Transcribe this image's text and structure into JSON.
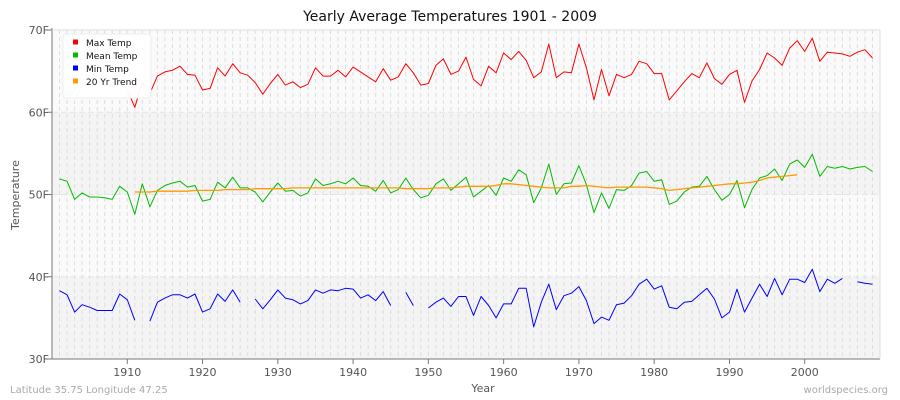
{
  "chart_data": {
    "type": "line",
    "title": "Yearly Average Temperatures 1901 - 2009",
    "xlabel": "Year",
    "ylabel": "Temperature",
    "xlim": [
      1900,
      2010
    ],
    "ylim": [
      30,
      70
    ],
    "x_ticks": [
      "1910",
      "1920",
      "1930",
      "1940",
      "1950",
      "1960",
      "1970",
      "1980",
      "1990",
      "2000"
    ],
    "y_ticks": [
      "30F",
      "40F",
      "50F",
      "60F",
      "70F"
    ],
    "grid": true,
    "legend_position": "top-left",
    "x_start": 1901,
    "series": [
      {
        "name": "Max Temp",
        "color": "#ff0000",
        "values": [
          null,
          null,
          null,
          null,
          null,
          null,
          null,
          null,
          null,
          62.7,
          60.6,
          63.6,
          62.3,
          64.4,
          64.9,
          65.1,
          65.6,
          64.6,
          64.5,
          62.7,
          62.9,
          65.4,
          64.4,
          65.9,
          64.8,
          64.5,
          63.6,
          62.2,
          63.5,
          64.6,
          63.3,
          63.7,
          63.0,
          63.4,
          65.4,
          64.4,
          64.4,
          65.1,
          64.3,
          65.5,
          64.9,
          64.3,
          63.7,
          65.3,
          63.9,
          64.3,
          65.9,
          64.8,
          63.3,
          63.5,
          65.7,
          66.5,
          64.6,
          65.0,
          66.7,
          64.0,
          63.2,
          65.6,
          64.8,
          67.2,
          66.4,
          67.4,
          66.3,
          64.2,
          64.9,
          68.3,
          64.2,
          64.9,
          64.8,
          68.3,
          65.4,
          61.5,
          65.2,
          62.0,
          64.6,
          64.2,
          64.6,
          66.2,
          65.9,
          64.7,
          64.7,
          61.5,
          62.6,
          63.7,
          64.7,
          64.2,
          66.0,
          64.1,
          63.4,
          64.6,
          65.1,
          61.2,
          63.8,
          65.2,
          67.2,
          66.6,
          65.7,
          67.8,
          68.7,
          67.4,
          69.0,
          66.2,
          67.3,
          67.2,
          67.1,
          66.8,
          67.3,
          67.6,
          66.6
        ]
      },
      {
        "name": "Mean Temp",
        "color": "#00bb00",
        "values": [
          51.9,
          51.6,
          49.4,
          50.2,
          49.7,
          49.7,
          49.6,
          49.4,
          51.0,
          50.3,
          47.6,
          51.3,
          48.5,
          50.5,
          51.1,
          51.4,
          51.6,
          50.9,
          51.1,
          49.2,
          49.4,
          51.5,
          50.8,
          52.1,
          50.8,
          50.8,
          50.3,
          49.1,
          50.3,
          51.4,
          50.4,
          50.5,
          49.8,
          50.2,
          51.9,
          51.1,
          51.3,
          51.6,
          51.3,
          52.0,
          51.1,
          51.0,
          50.4,
          51.7,
          50.2,
          50.6,
          52.0,
          50.6,
          49.6,
          49.9,
          51.3,
          51.9,
          50.5,
          51.3,
          52.1,
          49.7,
          50.4,
          51.1,
          49.9,
          52.0,
          51.6,
          53.0,
          52.4,
          49.0,
          50.8,
          53.7,
          50.0,
          51.3,
          51.4,
          53.5,
          51.2,
          47.8,
          50.2,
          48.3,
          50.6,
          50.5,
          51.1,
          52.6,
          52.8,
          51.6,
          51.8,
          48.8,
          49.2,
          50.3,
          50.9,
          51.0,
          52.2,
          50.6,
          49.3,
          50.0,
          51.7,
          48.4,
          50.6,
          52.0,
          52.3,
          53.1,
          51.7,
          53.7,
          54.2,
          53.3,
          54.9,
          52.2,
          53.4,
          53.2,
          53.4,
          53.1,
          53.3,
          53.4,
          52.8
        ]
      },
      {
        "name": "Min Temp",
        "color": "#0000ff",
        "values": [
          38.3,
          37.8,
          35.7,
          36.6,
          36.3,
          35.9,
          35.9,
          35.9,
          37.9,
          37.2,
          34.7,
          null,
          34.6,
          36.9,
          37.4,
          37.8,
          37.8,
          37.4,
          37.9,
          35.7,
          36.1,
          37.9,
          37.0,
          38.4,
          36.9,
          null,
          37.3,
          36.1,
          37.2,
          38.4,
          37.4,
          37.2,
          36.7,
          37.1,
          38.4,
          38.0,
          38.4,
          38.3,
          38.6,
          38.5,
          37.4,
          37.8,
          37.1,
          38.2,
          36.5,
          null,
          38.1,
          36.5,
          null,
          36.2,
          36.9,
          37.4,
          36.4,
          37.6,
          37.6,
          35.3,
          37.6,
          36.5,
          35.0,
          36.7,
          36.7,
          38.6,
          38.6,
          33.9,
          36.9,
          39.1,
          36.0,
          37.7,
          38.0,
          38.8,
          37.1,
          34.3,
          35.1,
          34.7,
          36.6,
          36.8,
          37.7,
          39.1,
          39.7,
          38.5,
          38.9,
          36.3,
          36.1,
          36.9,
          37.0,
          37.8,
          38.6,
          37.3,
          35.0,
          35.7,
          38.5,
          35.7,
          37.4,
          39.1,
          37.6,
          39.8,
          37.8,
          39.7,
          39.7,
          39.3,
          40.9,
          38.2,
          39.7,
          39.2,
          39.8,
          null,
          39.4,
          39.2,
          39.1
        ]
      },
      {
        "name": "20 Yr Trend",
        "color": "#ff9900",
        "values": [
          null,
          null,
          null,
          null,
          null,
          null,
          null,
          null,
          null,
          null,
          50.3,
          50.3,
          50.3,
          50.4,
          50.4,
          50.4,
          50.4,
          50.4,
          50.5,
          50.5,
          50.5,
          50.5,
          50.6,
          50.6,
          50.6,
          50.6,
          50.7,
          50.7,
          50.7,
          50.7,
          50.7,
          50.8,
          50.8,
          50.8,
          50.8,
          50.8,
          50.8,
          50.8,
          50.8,
          50.8,
          50.8,
          50.8,
          50.8,
          50.8,
          50.8,
          50.8,
          50.7,
          50.7,
          50.7,
          50.7,
          50.8,
          50.8,
          50.8,
          50.9,
          51.0,
          51.0,
          51.0,
          51.0,
          51.1,
          51.3,
          51.3,
          51.2,
          51.1,
          51.0,
          50.9,
          50.8,
          50.8,
          50.8,
          51.0,
          51.0,
          51.1,
          51.0,
          50.9,
          50.8,
          50.9,
          50.9,
          50.9,
          50.9,
          50.9,
          50.8,
          50.7,
          50.5,
          50.6,
          50.7,
          50.8,
          50.9,
          51.0,
          51.1,
          51.2,
          51.3,
          51.3,
          51.4,
          51.5,
          51.7,
          52.0,
          52.1,
          52.2,
          52.3,
          52.4,
          null,
          null,
          null,
          null,
          null,
          null,
          null,
          null,
          null,
          null
        ]
      }
    ]
  },
  "footer": {
    "location": "Latitude 35.75 Longitude 47.25",
    "source": "worldspecies.org"
  }
}
